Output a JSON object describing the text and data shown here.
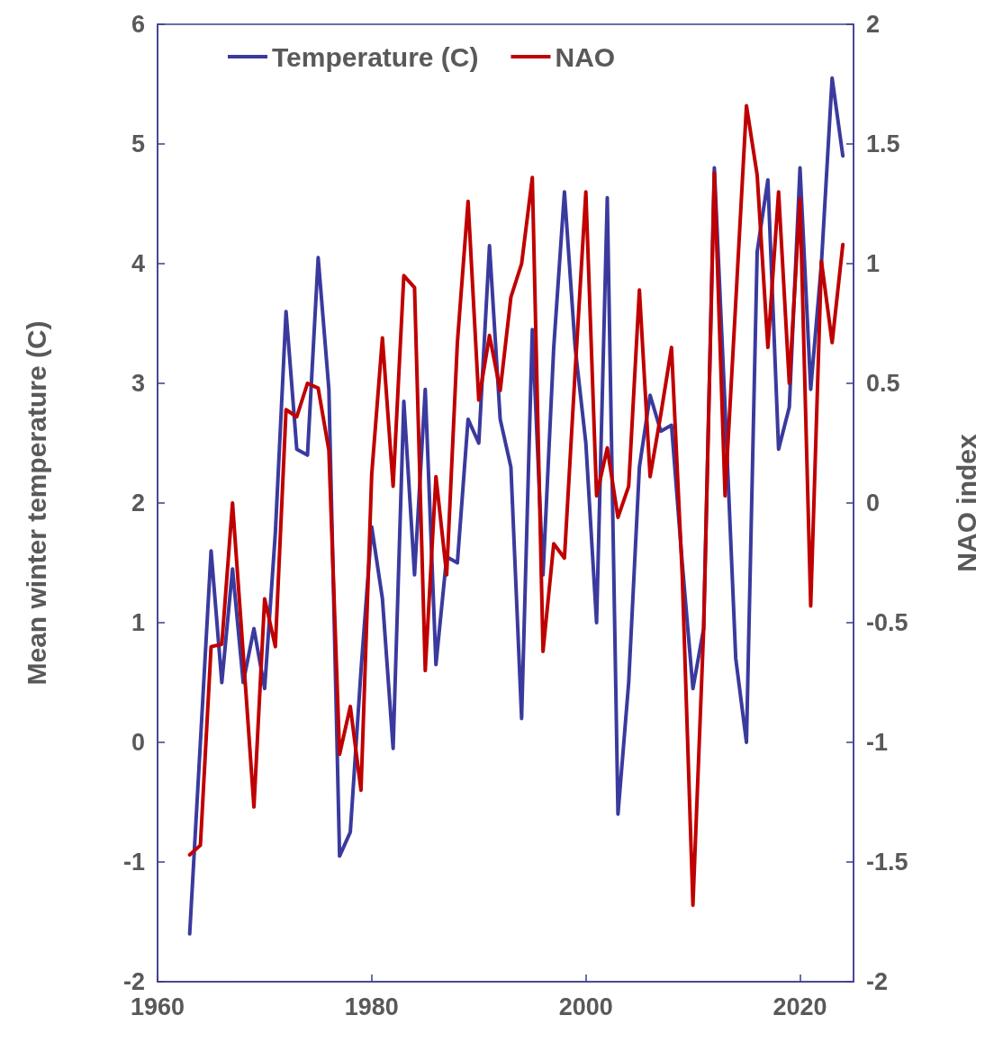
{
  "chart_data": {
    "type": "line",
    "ylabel": "Mean winter temperature (C)",
    "y2label": "NAO index",
    "x": [
      1963,
      1964,
      1965,
      1966,
      1967,
      1968,
      1969,
      1970,
      1971,
      1972,
      1973,
      1974,
      1975,
      1976,
      1977,
      1978,
      1979,
      1980,
      1981,
      1982,
      1983,
      1984,
      1985,
      1986,
      1987,
      1988,
      1989,
      1990,
      1991,
      1992,
      1993,
      1994,
      1995,
      1996,
      1997,
      1998,
      1999,
      2000,
      2001,
      2002,
      2003,
      2004,
      2005,
      2006,
      2007,
      2008,
      2009,
      2010,
      2011,
      2012,
      2013,
      2014,
      2015,
      2016,
      2017,
      2018,
      2019,
      2020,
      2021,
      2022,
      2023,
      2024
    ],
    "series": [
      {
        "name": "Temperature (C)",
        "color": "#3a3a9e",
        "values": [
          -1.6,
          0.0,
          1.6,
          0.5,
          1.45,
          0.5,
          0.95,
          0.45,
          1.75,
          3.6,
          2.45,
          2.4,
          4.05,
          2.95,
          -0.95,
          -0.75,
          0.6,
          1.8,
          1.2,
          -0.05,
          2.85,
          1.4,
          2.95,
          0.65,
          1.55,
          1.5,
          2.7,
          2.5,
          4.15,
          2.7,
          2.3,
          0.2,
          3.45,
          1.4,
          3.3,
          4.6,
          3.3,
          2.5,
          1.0,
          4.55,
          -0.6,
          0.5,
          2.3,
          2.9,
          2.6,
          2.65,
          1.5,
          0.45,
          0.95,
          4.8,
          2.8,
          0.7,
          0.0,
          4.1,
          4.7,
          2.45,
          2.8,
          4.8,
          2.95,
          4.0,
          5.55,
          4.9
        ]
      },
      {
        "name": "NAO",
        "color": "#c00000",
        "axis": "y2",
        "values": [
          -1.47,
          -1.43,
          -0.6,
          -0.59,
          0.0,
          -0.63,
          -1.27,
          -0.4,
          -0.6,
          0.39,
          0.36,
          0.5,
          0.48,
          0.22,
          -1.05,
          -0.85,
          -1.2,
          0.12,
          0.69,
          0.07,
          0.95,
          0.9,
          -0.7,
          0.11,
          -0.3,
          0.67,
          1.26,
          0.43,
          0.7,
          0.47,
          0.86,
          1.0,
          1.36,
          -0.62,
          -0.17,
          -0.23,
          0.55,
          1.3,
          0.03,
          0.23,
          -0.06,
          0.07,
          0.89,
          0.11,
          0.37,
          0.65,
          -0.3,
          -1.68,
          -0.53,
          1.38,
          0.03,
          0.84,
          1.66,
          1.37,
          0.65,
          1.3,
          0.5,
          1.27,
          -0.43,
          1.01,
          0.67,
          1.08
        ]
      }
    ],
    "xlim": [
      1960,
      2025
    ],
    "xticks": [
      1960,
      1980,
      2000,
      2020
    ],
    "ylim": [
      -2,
      6
    ],
    "yticks": [
      -2,
      -1,
      0,
      1,
      2,
      3,
      4,
      5,
      6
    ],
    "y2lim": [
      -2,
      2
    ],
    "y2ticks": [
      -2,
      -1.5,
      -1,
      -0.5,
      0,
      0.5,
      1,
      1.5,
      2
    ],
    "legend": "top",
    "grid": false,
    "marker": "none",
    "line_style": "solid"
  }
}
